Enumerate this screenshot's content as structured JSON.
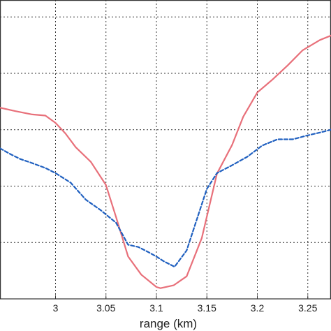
{
  "chart_data": {
    "type": "line",
    "title": "",
    "xlabel": "range (km)",
    "ylabel": "",
    "xlim": [
      2.945,
      3.273
    ],
    "ylim": [
      0,
      5.3
    ],
    "x_ticks": [
      3,
      3.05,
      3.1,
      3.15,
      3.2,
      3.25
    ],
    "x_tick_labels": [
      "3",
      "3.05",
      "3.1",
      "3.15",
      "3.2",
      "3.25"
    ],
    "y_grid": [
      1,
      2,
      3,
      4,
      5
    ],
    "grid": true,
    "legend": "none",
    "series": [
      {
        "color": "#e8707a",
        "style": "solid",
        "x": [
          2.945,
          2.96,
          2.977,
          2.99,
          3.0,
          3.01,
          3.02,
          3.035,
          3.05,
          3.06,
          3.072,
          3.085,
          3.1,
          3.104,
          3.117,
          3.13,
          3.145,
          3.16,
          3.175,
          3.186,
          3.2,
          3.215,
          3.23,
          3.245,
          3.262,
          3.273
        ],
        "y": [
          3.39,
          3.33,
          3.27,
          3.25,
          3.12,
          2.93,
          2.69,
          2.43,
          2.02,
          1.45,
          0.75,
          0.43,
          0.21,
          0.19,
          0.24,
          0.4,
          1.08,
          2.22,
          2.73,
          3.23,
          3.66,
          3.89,
          4.14,
          4.41,
          4.59,
          4.67
        ]
      },
      {
        "color": "#2060c0",
        "style": "dashed",
        "x": [
          2.945,
          2.955,
          2.965,
          2.975,
          2.99,
          3.0,
          3.015,
          3.03,
          3.045,
          3.06,
          3.072,
          3.082,
          3.092,
          3.1,
          3.107,
          3.118,
          3.13,
          3.15,
          3.16,
          3.175,
          3.19,
          3.205,
          3.22,
          3.235,
          3.25,
          3.262,
          3.273
        ],
        "y": [
          2.67,
          2.57,
          2.48,
          2.42,
          2.32,
          2.23,
          2.06,
          1.76,
          1.57,
          1.35,
          0.96,
          0.92,
          0.83,
          0.75,
          0.67,
          0.57,
          0.86,
          1.95,
          2.23,
          2.37,
          2.52,
          2.72,
          2.83,
          2.83,
          2.9,
          2.95,
          3.0
        ]
      }
    ]
  }
}
